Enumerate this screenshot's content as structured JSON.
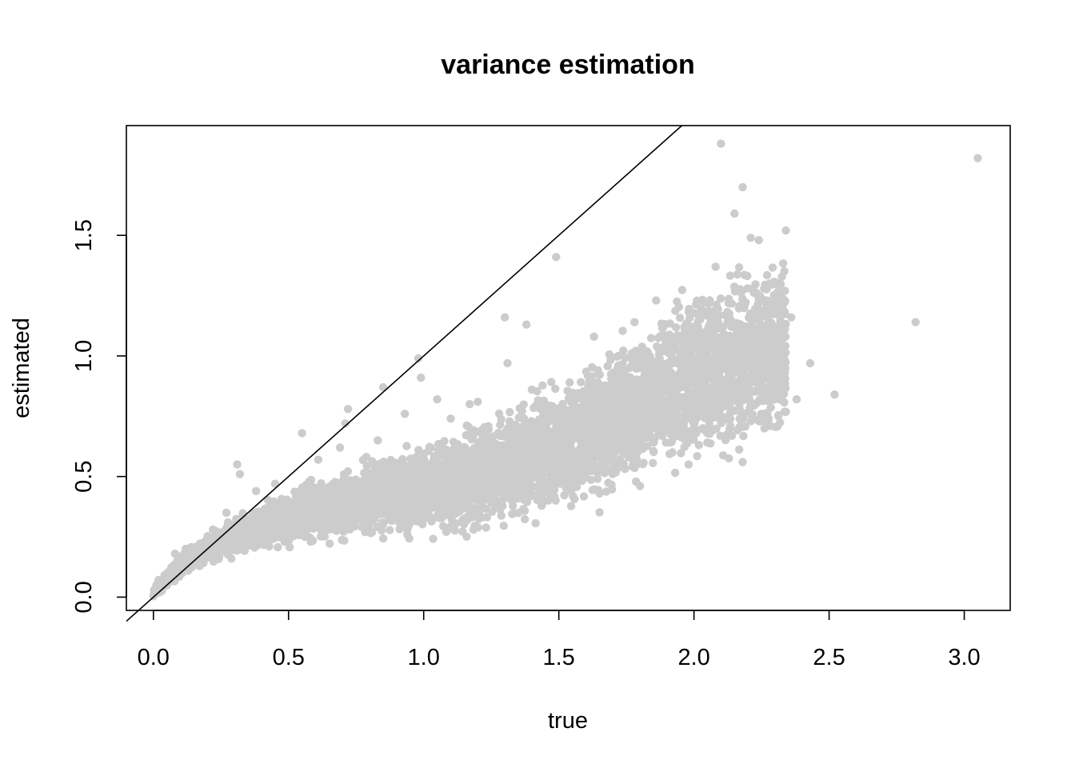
{
  "chart_data": {
    "type": "scatter",
    "title": "variance estimation",
    "xlabel": "true",
    "ylabel": "estimated",
    "xlim": [
      -0.1,
      3.17
    ],
    "ylim": [
      -0.055,
      1.955
    ],
    "x_ticks": [
      0.0,
      0.5,
      1.0,
      1.5,
      2.0,
      2.5,
      3.0
    ],
    "y_ticks": [
      0.0,
      0.5,
      1.0,
      1.5
    ],
    "x_tick_labels": [
      "0.0",
      "0.5",
      "1.0",
      "1.5",
      "2.0",
      "2.5",
      "3.0"
    ],
    "y_tick_labels": [
      "0.0",
      "0.5",
      "1.0",
      "1.5"
    ],
    "point_color": "#cccccc",
    "line_color": "#000000",
    "reference_line": {
      "intercept": 0,
      "slope": 1
    },
    "grid": false,
    "legend": false,
    "trend": [
      [
        0.0,
        0.02
      ],
      [
        0.1,
        0.13
      ],
      [
        0.2,
        0.2
      ],
      [
        0.3,
        0.25
      ],
      [
        0.4,
        0.29
      ],
      [
        0.5,
        0.33
      ],
      [
        0.6,
        0.36
      ],
      [
        0.7,
        0.38
      ],
      [
        0.8,
        0.41
      ],
      [
        0.9,
        0.43
      ],
      [
        1.0,
        0.45
      ],
      [
        1.1,
        0.47
      ],
      [
        1.2,
        0.5
      ],
      [
        1.3,
        0.53
      ],
      [
        1.4,
        0.58
      ],
      [
        1.5,
        0.63
      ],
      [
        1.6,
        0.68
      ],
      [
        1.7,
        0.74
      ],
      [
        1.8,
        0.8
      ],
      [
        1.9,
        0.86
      ],
      [
        2.0,
        0.92
      ],
      [
        2.1,
        0.96
      ],
      [
        2.2,
        1.0
      ],
      [
        2.3,
        1.03
      ]
    ],
    "points": [
      [
        2.1,
        1.88
      ],
      [
        3.05,
        1.82
      ],
      [
        2.18,
        1.7
      ],
      [
        2.15,
        1.59
      ],
      [
        2.21,
        1.49
      ],
      [
        2.24,
        1.48
      ],
      [
        2.34,
        1.52
      ],
      [
        1.49,
        1.41
      ],
      [
        2.08,
        1.37
      ],
      [
        2.82,
        1.14
      ],
      [
        2.52,
        0.84
      ],
      [
        2.43,
        0.97
      ],
      [
        2.38,
        0.82
      ],
      [
        2.18,
        0.56
      ],
      [
        1.98,
        0.55
      ],
      [
        1.65,
        0.43
      ],
      [
        1.31,
        0.97
      ],
      [
        1.3,
        1.16
      ],
      [
        1.38,
        1.13
      ],
      [
        1.63,
        1.08
      ],
      [
        0.98,
        0.99
      ],
      [
        0.99,
        0.91
      ],
      [
        0.85,
        0.87
      ],
      [
        0.72,
        0.78
      ],
      [
        0.55,
        0.68
      ],
      [
        0.31,
        0.55
      ],
      [
        0.32,
        0.51
      ],
      [
        0.45,
        0.47
      ],
      [
        0.71,
        0.72
      ],
      [
        0.93,
        0.76
      ],
      [
        1.05,
        0.82
      ],
      [
        1.2,
        0.81
      ],
      [
        1.86,
        1.23
      ],
      [
        1.78,
        1.14
      ],
      [
        0.83,
        0.65
      ],
      [
        0.61,
        0.57
      ],
      [
        1.17,
        0.8
      ],
      [
        1.4,
        0.86
      ],
      [
        1.72,
        1.0
      ],
      [
        2.28,
        1.3
      ],
      [
        2.3,
        1.22
      ],
      [
        1.93,
        1.05
      ],
      [
        1.54,
        0.89
      ],
      [
        1.1,
        0.74
      ],
      [
        0.69,
        0.62
      ],
      [
        0.38,
        0.44
      ],
      [
        2.05,
        0.68
      ],
      [
        1.92,
        0.6
      ],
      [
        1.73,
        0.65
      ],
      [
        1.43,
        0.46
      ],
      [
        1.1,
        0.41
      ],
      [
        0.7,
        0.35
      ],
      [
        0.5,
        0.27
      ],
      [
        0.31,
        0.2
      ],
      [
        1.6,
        0.56
      ],
      [
        1.28,
        0.48
      ],
      [
        2.12,
        0.82
      ],
      [
        2.26,
        0.86
      ],
      [
        2.0,
        0.78
      ],
      [
        1.82,
        0.7
      ],
      [
        0.88,
        0.35
      ],
      [
        0.98,
        0.4
      ],
      [
        1.36,
        0.44
      ],
      [
        1.7,
        0.62
      ],
      [
        0.08,
        0.18
      ],
      [
        0.12,
        0.2
      ],
      [
        0.22,
        0.28
      ],
      [
        0.27,
        0.35
      ],
      [
        0.16,
        0.16
      ],
      [
        0.05,
        0.08
      ],
      [
        0.03,
        0.03
      ],
      [
        2.36,
        1.16
      ]
    ]
  }
}
